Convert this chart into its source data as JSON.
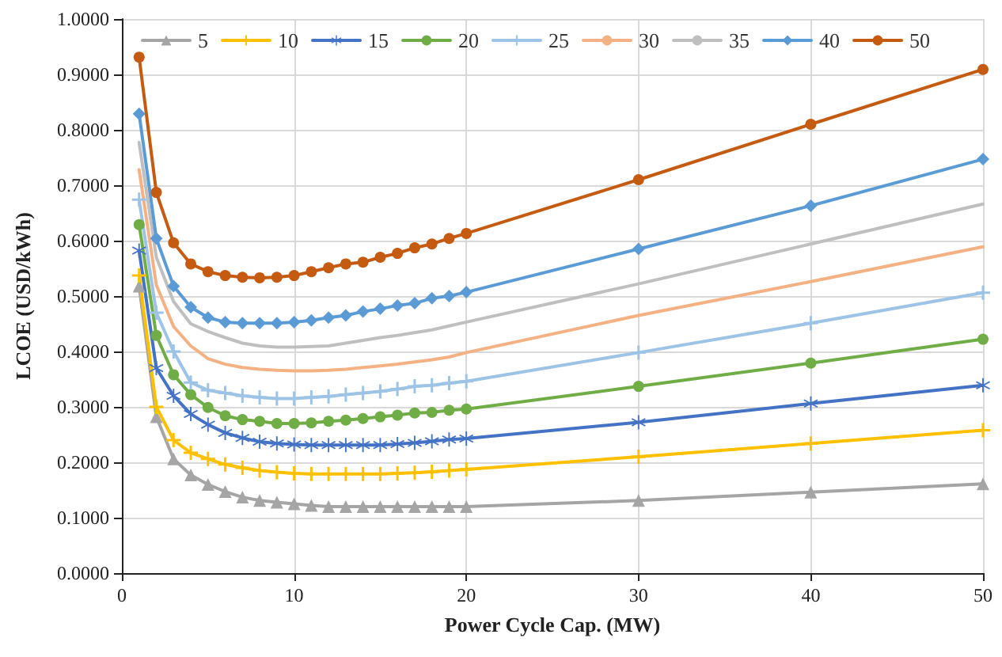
{
  "chart_data": {
    "type": "line",
    "xlabel": "Power Cycle Cap. (MW)",
    "ylabel": "LCOE (USD/kWh)",
    "x": [
      1,
      2,
      3,
      4,
      5,
      6,
      7,
      8,
      9,
      10,
      11,
      12,
      13,
      14,
      15,
      16,
      17,
      18,
      19,
      20,
      30,
      40,
      50
    ],
    "xlim": [
      0,
      50
    ],
    "xticks": [
      0,
      10,
      20,
      30,
      40,
      50
    ],
    "ylim": [
      0,
      1
    ],
    "yticks": [
      {
        "value": 0,
        "label": "0.0000"
      },
      {
        "value": 0.1,
        "label": "0.1000"
      },
      {
        "value": 0.2,
        "label": "0.2000"
      },
      {
        "value": 0.3,
        "label": "0.3000"
      },
      {
        "value": 0.4,
        "label": "0.4000"
      },
      {
        "value": 0.5,
        "label": "0.5000"
      },
      {
        "value": 0.6,
        "label": "0.6000"
      },
      {
        "value": 0.7,
        "label": "0.7000"
      },
      {
        "value": 0.8,
        "label": "0.8000"
      },
      {
        "value": 0.9,
        "label": "0.9000"
      },
      {
        "value": 1,
        "label": "1.0000"
      }
    ],
    "grid": true,
    "legend": "top",
    "series": [
      {
        "name": "5",
        "color": "#a5a5a5",
        "marker": "triangle",
        "values": [
          0.518,
          0.282,
          0.206,
          0.177,
          0.16,
          0.147,
          0.137,
          0.131,
          0.128,
          0.125,
          0.122,
          0.12,
          0.12,
          0.12,
          0.12,
          0.12,
          0.12,
          0.12,
          0.12,
          0.12,
          0.131,
          0.146,
          0.161
        ]
      },
      {
        "name": "10",
        "color": "#ffc000",
        "marker": "cross",
        "values": [
          0.537,
          0.3,
          0.24,
          0.217,
          0.206,
          0.196,
          0.19,
          0.185,
          0.182,
          0.18,
          0.179,
          0.179,
          0.179,
          0.179,
          0.179,
          0.18,
          0.181,
          0.183,
          0.185,
          0.187,
          0.21,
          0.234,
          0.258
        ]
      },
      {
        "name": "15",
        "color": "#4472c4",
        "marker": "star",
        "values": [
          0.582,
          0.37,
          0.32,
          0.287,
          0.268,
          0.253,
          0.244,
          0.237,
          0.234,
          0.232,
          0.231,
          0.231,
          0.231,
          0.231,
          0.231,
          0.233,
          0.235,
          0.238,
          0.241,
          0.243,
          0.272,
          0.306,
          0.339
        ]
      },
      {
        "name": "20",
        "color": "#70ad47",
        "marker": "circle",
        "values": [
          0.629,
          0.429,
          0.358,
          0.322,
          0.299,
          0.284,
          0.277,
          0.274,
          0.27,
          0.27,
          0.271,
          0.274,
          0.276,
          0.279,
          0.282,
          0.285,
          0.289,
          0.29,
          0.294,
          0.296,
          0.337,
          0.379,
          0.422
        ]
      },
      {
        "name": "25",
        "color": "#9dc3e6",
        "marker": "cross",
        "values": [
          0.674,
          0.47,
          0.4,
          0.344,
          0.33,
          0.325,
          0.32,
          0.317,
          0.315,
          0.315,
          0.317,
          0.319,
          0.322,
          0.325,
          0.328,
          0.332,
          0.337,
          0.339,
          0.343,
          0.346,
          0.398,
          0.451,
          0.506
        ]
      },
      {
        "name": "30",
        "color": "#f4b183",
        "marker": "none",
        "values": [
          0.728,
          0.52,
          0.445,
          0.41,
          0.387,
          0.377,
          0.371,
          0.368,
          0.366,
          0.365,
          0.365,
          0.366,
          0.368,
          0.371,
          0.374,
          0.377,
          0.381,
          0.385,
          0.39,
          0.398,
          0.465,
          0.526,
          0.589
        ]
      },
      {
        "name": "35",
        "color": "#bfbfbf",
        "marker": "none",
        "values": [
          0.777,
          0.57,
          0.49,
          0.45,
          0.436,
          0.425,
          0.415,
          0.41,
          0.408,
          0.408,
          0.409,
          0.41,
          0.415,
          0.42,
          0.425,
          0.429,
          0.434,
          0.439,
          0.446,
          0.453,
          0.522,
          0.594,
          0.666
        ]
      },
      {
        "name": "40",
        "color": "#5b9bd5",
        "marker": "diamond",
        "values": [
          0.829,
          0.604,
          0.518,
          0.48,
          0.461,
          0.453,
          0.451,
          0.451,
          0.451,
          0.453,
          0.456,
          0.461,
          0.465,
          0.472,
          0.477,
          0.483,
          0.487,
          0.496,
          0.5,
          0.507,
          0.585,
          0.663,
          0.747
        ]
      },
      {
        "name": "50",
        "color": "#c55a11",
        "marker": "circle",
        "values": [
          0.931,
          0.687,
          0.596,
          0.558,
          0.544,
          0.537,
          0.534,
          0.533,
          0.534,
          0.537,
          0.544,
          0.551,
          0.558,
          0.561,
          0.57,
          0.577,
          0.587,
          0.594,
          0.604,
          0.613,
          0.71,
          0.81,
          0.909
        ]
      }
    ]
  }
}
